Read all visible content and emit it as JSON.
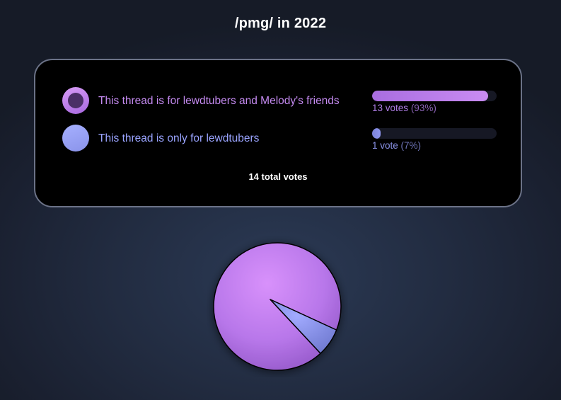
{
  "title": "/pmg/ in 2022",
  "poll": {
    "options": [
      {
        "label": "This thread is for lewdtubers and Melody's friends",
        "votes_text": "13 votes",
        "percent_text": "(93%)",
        "votes": 13,
        "fraction": 0.93,
        "selected": true,
        "color": "#c48af0",
        "bar_gradient": [
          "#a96de0",
          "#c98cf2"
        ]
      },
      {
        "label": "This thread is only for lewdtubers",
        "votes_text": "1 vote",
        "percent_text": "(7%)",
        "votes": 1,
        "fraction": 0.07,
        "selected": false,
        "color": "#9aa4ff",
        "bar_gradient": [
          "#7b82d8",
          "#8e96ee"
        ]
      }
    ],
    "total_text": "14 total votes"
  },
  "colors": {
    "background": "#1f2738",
    "card_border": "#6b7287",
    "slice_major": "#c48af0",
    "slice_minor": "#8a93ea"
  },
  "chart_data": {
    "type": "pie",
    "categories": [
      "This thread is for lewdtubers and Melody's friends",
      "This thread is only for lewdtubers"
    ],
    "values": [
      13,
      1
    ]
  }
}
